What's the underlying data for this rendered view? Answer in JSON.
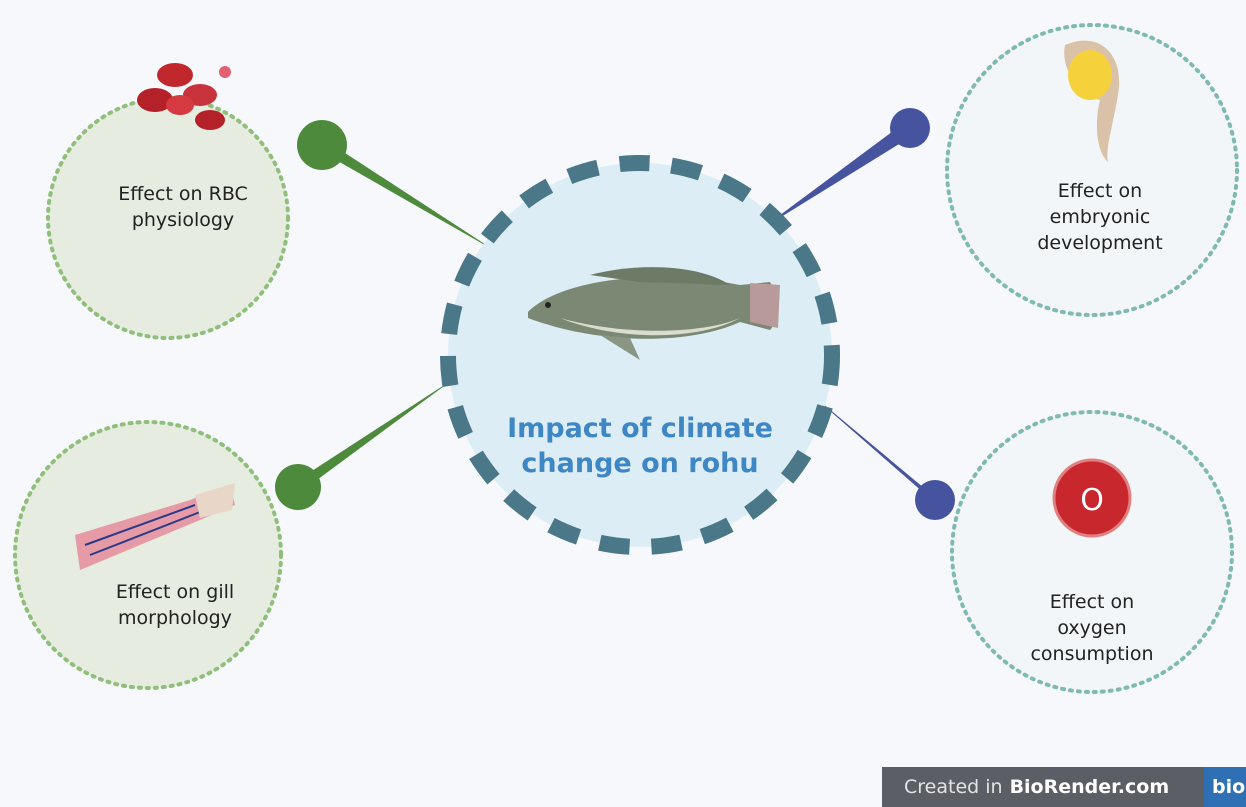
{
  "center": {
    "lines": [
      "Impact of climate",
      "change on rohu"
    ]
  },
  "nodes": [
    {
      "lines": [
        "Effect on RBC",
        "physiology"
      ]
    },
    {
      "lines": [
        "Effect on gill",
        "morphology"
      ]
    },
    {
      "lines": [
        "Effect on",
        "embryonic",
        "development"
      ]
    },
    {
      "lines": [
        "Effect on",
        "oxygen",
        "consumption"
      ],
      "icon": "O"
    }
  ],
  "footer": {
    "prefix": "Created in",
    "brand": "BioRender.com",
    "logo": "bio"
  }
}
